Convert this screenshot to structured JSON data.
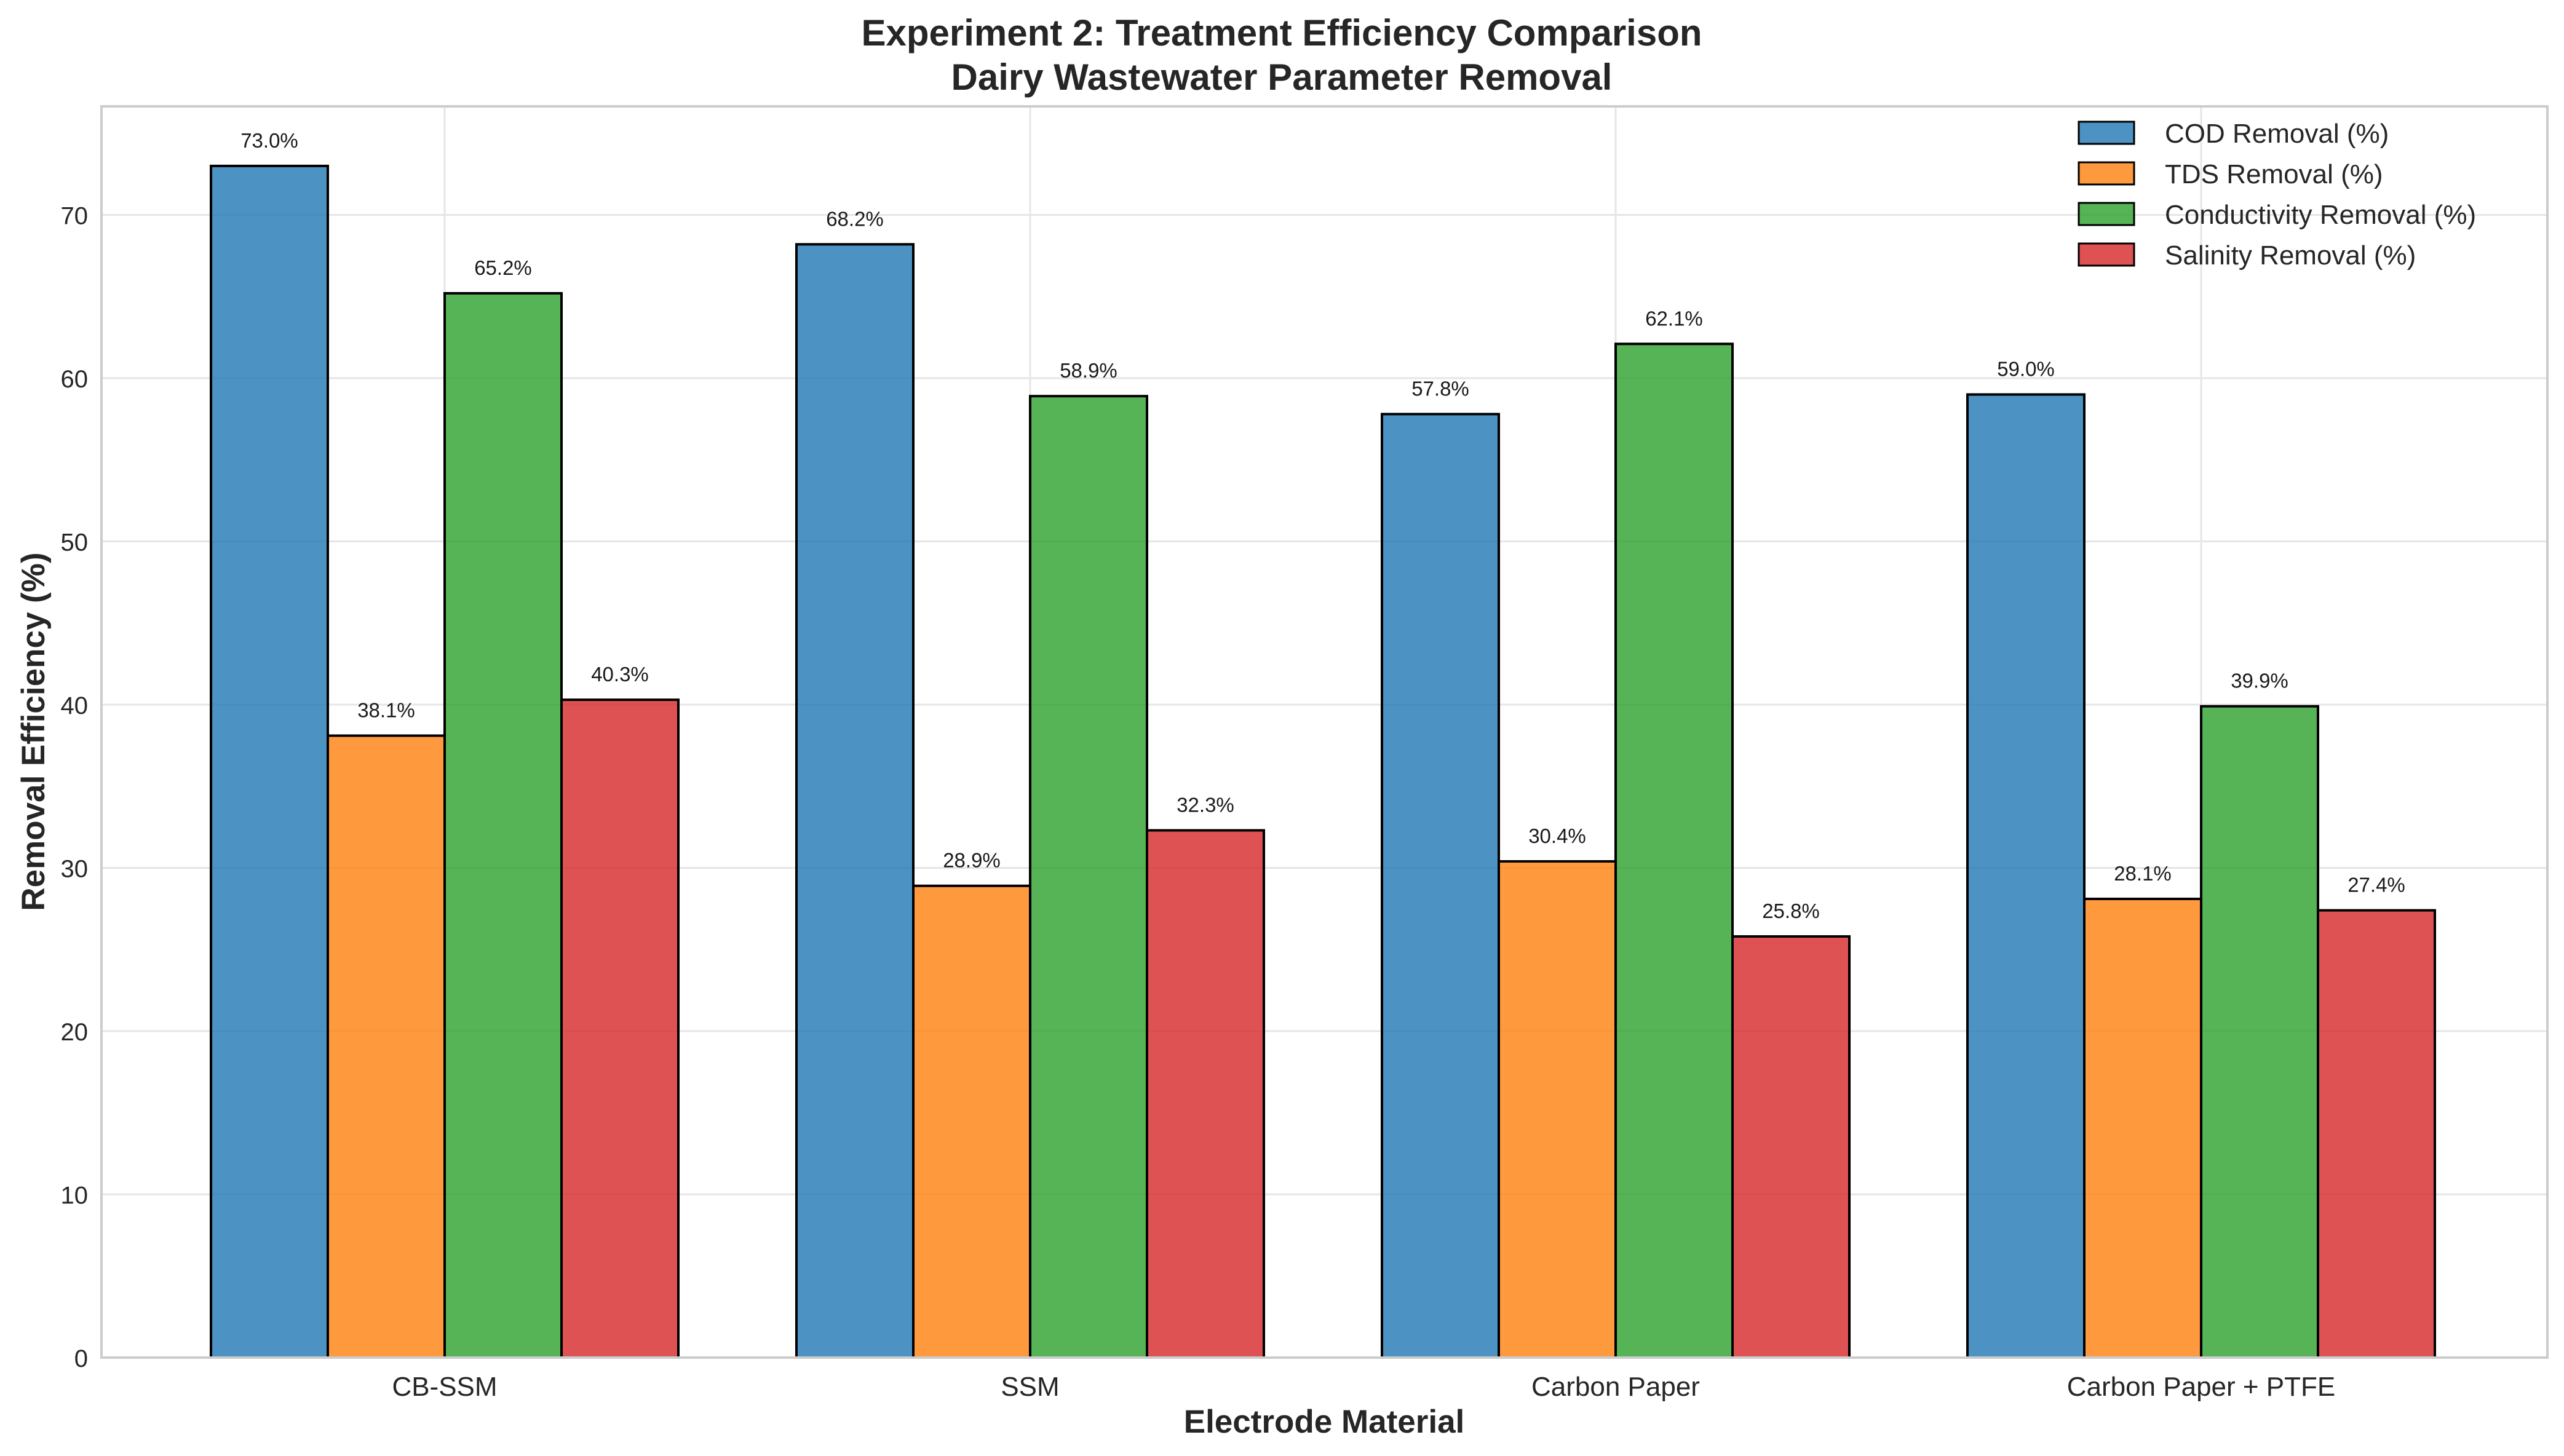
{
  "chart_data": {
    "type": "bar",
    "title": "Experiment 2: Treatment Efficiency Comparison",
    "subtitle": "Dairy Wastewater Parameter Removal",
    "xlabel": "Electrode Material",
    "ylabel": "Removal Efficiency (%)",
    "categories": [
      "CB-SSM",
      "SSM",
      "Carbon Paper",
      "Carbon Paper + PTFE"
    ],
    "series": [
      {
        "name": "COD Removal (%)",
        "color": "#1f77b4",
        "values": [
          73.0,
          68.2,
          57.8,
          59.0
        ]
      },
      {
        "name": "TDS Removal (%)",
        "color": "#ff7f0e",
        "values": [
          38.1,
          28.9,
          30.4,
          28.1
        ]
      },
      {
        "name": "Conductivity Removal (%)",
        "color": "#2ca02c",
        "values": [
          65.2,
          58.9,
          62.1,
          39.9
        ]
      },
      {
        "name": "Salinity Removal (%)",
        "color": "#d62728",
        "values": [
          40.3,
          32.3,
          25.8,
          27.4
        ]
      }
    ],
    "ylim": [
      0,
      76.65
    ],
    "yticks": [
      0,
      10,
      20,
      30,
      40,
      50,
      60,
      70
    ],
    "value_label_suffix": "%",
    "grid": true,
    "legend_position": "top-right"
  }
}
